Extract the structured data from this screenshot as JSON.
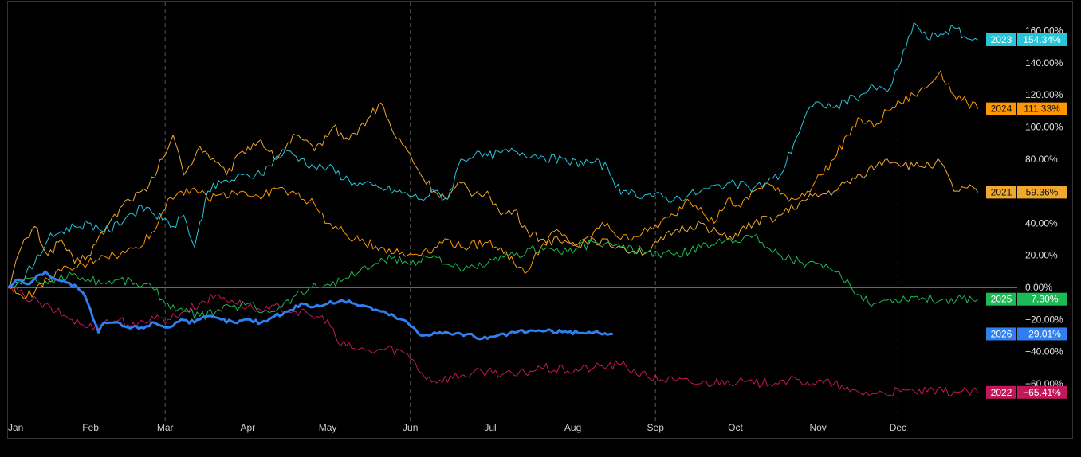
{
  "chart_data": {
    "type": "line",
    "x_ticks": [
      "Jan",
      "Feb",
      "Mar",
      "Apr",
      "May",
      "Jun",
      "Jul",
      "Aug",
      "Sep",
      "Oct",
      "Nov",
      "Dec"
    ],
    "y_ticks": [
      "160.00%",
      "140.00%",
      "120.00%",
      "100.00%",
      "80.00%",
      "60.00%",
      "40.00%",
      "20.00%",
      "0.00%",
      "−20.00%",
      "−40.00%",
      "−60.00%"
    ],
    "ylim": [
      -85,
      170
    ],
    "zero_line": true,
    "vertical_grid_quarters": [
      "Mar",
      "Jun",
      "Sep",
      "Dec"
    ],
    "series": [
      {
        "name": "2021",
        "color": "#f0a830",
        "width": 1,
        "last_label": "59.36%",
        "points": [
          [
            0,
            0
          ],
          [
            5,
            25
          ],
          [
            10,
            38
          ],
          [
            15,
            20
          ],
          [
            20,
            30
          ],
          [
            25,
            15
          ],
          [
            30,
            20
          ],
          [
            38,
            40
          ],
          [
            45,
            55
          ],
          [
            52,
            60
          ],
          [
            58,
            80
          ],
          [
            62,
            95
          ],
          [
            66,
            70
          ],
          [
            72,
            88
          ],
          [
            78,
            78
          ],
          [
            82,
            70
          ],
          [
            88,
            85
          ],
          [
            95,
            92
          ],
          [
            100,
            80
          ],
          [
            108,
            95
          ],
          [
            115,
            85
          ],
          [
            122,
            100
          ],
          [
            128,
            92
          ],
          [
            135,
            105
          ],
          [
            140,
            115
          ],
          [
            145,
            95
          ],
          [
            150,
            85
          ],
          [
            155,
            70
          ],
          [
            160,
            60
          ],
          [
            165,
            55
          ],
          [
            170,
            65
          ],
          [
            175,
            58
          ],
          [
            180,
            60
          ],
          [
            185,
            45
          ],
          [
            190,
            48
          ],
          [
            195,
            35
          ],
          [
            200,
            30
          ],
          [
            210,
            28
          ],
          [
            220,
            30
          ],
          [
            230,
            25
          ],
          [
            240,
            22
          ],
          [
            250,
            35
          ],
          [
            260,
            40
          ],
          [
            270,
            30
          ],
          [
            280,
            40
          ],
          [
            290,
            45
          ],
          [
            300,
            55
          ],
          [
            310,
            60
          ],
          [
            320,
            70
          ],
          [
            330,
            80
          ],
          [
            340,
            75
          ],
          [
            350,
            78
          ],
          [
            355,
            60
          ],
          [
            360,
            62
          ],
          [
            364,
            59.36
          ]
        ]
      },
      {
        "name": "2022",
        "color": "#c2185b",
        "width": 1,
        "last_label": "−65.41%",
        "points": [
          [
            0,
            0
          ],
          [
            6,
            -5
          ],
          [
            12,
            -10
          ],
          [
            18,
            -15
          ],
          [
            24,
            -20
          ],
          [
            30,
            -25
          ],
          [
            36,
            -22
          ],
          [
            42,
            -20
          ],
          [
            48,
            -25
          ],
          [
            54,
            -18
          ],
          [
            60,
            -20
          ],
          [
            66,
            -15
          ],
          [
            72,
            -10
          ],
          [
            78,
            -5
          ],
          [
            84,
            -8
          ],
          [
            90,
            -12
          ],
          [
            96,
            -15
          ],
          [
            102,
            -12
          ],
          [
            108,
            -15
          ],
          [
            114,
            -18
          ],
          [
            120,
            -20
          ],
          [
            124,
            -35
          ],
          [
            130,
            -38
          ],
          [
            136,
            -40
          ],
          [
            142,
            -38
          ],
          [
            148,
            -40
          ],
          [
            152,
            -45
          ],
          [
            156,
            -55
          ],
          [
            160,
            -58
          ],
          [
            170,
            -55
          ],
          [
            180,
            -52
          ],
          [
            190,
            -55
          ],
          [
            200,
            -50
          ],
          [
            210,
            -52
          ],
          [
            220,
            -50
          ],
          [
            230,
            -48
          ],
          [
            240,
            -56
          ],
          [
            250,
            -58
          ],
          [
            260,
            -60
          ],
          [
            270,
            -58
          ],
          [
            280,
            -60
          ],
          [
            290,
            -58
          ],
          [
            300,
            -59
          ],
          [
            310,
            -60
          ],
          [
            316,
            -65
          ],
          [
            325,
            -66
          ],
          [
            335,
            -65
          ],
          [
            345,
            -65
          ],
          [
            355,
            -65
          ],
          [
            364,
            -65.41
          ]
        ]
      },
      {
        "name": "2023",
        "color": "#26c6da",
        "width": 1,
        "last_label": "154.34%",
        "points": [
          [
            0,
            0
          ],
          [
            5,
            5
          ],
          [
            10,
            15
          ],
          [
            15,
            30
          ],
          [
            20,
            35
          ],
          [
            25,
            38
          ],
          [
            30,
            40
          ],
          [
            38,
            35
          ],
          [
            45,
            45
          ],
          [
            52,
            50
          ],
          [
            58,
            42
          ],
          [
            62,
            38
          ],
          [
            66,
            45
          ],
          [
            70,
            25
          ],
          [
            75,
            60
          ],
          [
            80,
            65
          ],
          [
            90,
            70
          ],
          [
            95,
            70
          ],
          [
            100,
            80
          ],
          [
            105,
            85
          ],
          [
            110,
            80
          ],
          [
            115,
            75
          ],
          [
            120,
            75
          ],
          [
            130,
            65
          ],
          [
            140,
            62
          ],
          [
            150,
            58
          ],
          [
            155,
            55
          ],
          [
            160,
            60
          ],
          [
            165,
            55
          ],
          [
            170,
            80
          ],
          [
            175,
            82
          ],
          [
            180,
            82
          ],
          [
            190,
            85
          ],
          [
            200,
            82
          ],
          [
            210,
            78
          ],
          [
            220,
            78
          ],
          [
            225,
            75
          ],
          [
            230,
            58
          ],
          [
            240,
            58
          ],
          [
            250,
            55
          ],
          [
            260,
            60
          ],
          [
            270,
            65
          ],
          [
            280,
            62
          ],
          [
            290,
            70
          ],
          [
            295,
            90
          ],
          [
            300,
            110
          ],
          [
            305,
            115
          ],
          [
            310,
            112
          ],
          [
            320,
            120
          ],
          [
            325,
            125
          ],
          [
            330,
            122
          ],
          [
            335,
            140
          ],
          [
            340,
            165
          ],
          [
            345,
            155
          ],
          [
            350,
            158
          ],
          [
            355,
            162
          ],
          [
            360,
            155
          ],
          [
            364,
            154.34
          ]
        ]
      },
      {
        "name": "2024",
        "color": "#ff9800",
        "width": 1,
        "last_label": "111.33%",
        "points": [
          [
            0,
            0
          ],
          [
            5,
            -5
          ],
          [
            10,
            -3
          ],
          [
            15,
            5
          ],
          [
            20,
            10
          ],
          [
            25,
            12
          ],
          [
            30,
            15
          ],
          [
            35,
            20
          ],
          [
            42,
            20
          ],
          [
            48,
            25
          ],
          [
            55,
            35
          ],
          [
            60,
            55
          ],
          [
            65,
            60
          ],
          [
            70,
            62
          ],
          [
            75,
            55
          ],
          [
            80,
            58
          ],
          [
            88,
            60
          ],
          [
            95,
            55
          ],
          [
            100,
            62
          ],
          [
            108,
            58
          ],
          [
            115,
            52
          ],
          [
            120,
            40
          ],
          [
            130,
            30
          ],
          [
            140,
            25
          ],
          [
            150,
            20
          ],
          [
            160,
            25
          ],
          [
            165,
            30
          ],
          [
            170,
            25
          ],
          [
            180,
            28
          ],
          [
            185,
            25
          ],
          [
            190,
            15
          ],
          [
            195,
            10
          ],
          [
            200,
            25
          ],
          [
            205,
            35
          ],
          [
            210,
            30
          ],
          [
            215,
            25
          ],
          [
            220,
            35
          ],
          [
            225,
            40
          ],
          [
            230,
            30
          ],
          [
            240,
            35
          ],
          [
            250,
            45
          ],
          [
            255,
            55
          ],
          [
            260,
            50
          ],
          [
            265,
            40
          ],
          [
            270,
            55
          ],
          [
            275,
            50
          ],
          [
            280,
            60
          ],
          [
            285,
            65
          ],
          [
            290,
            58
          ],
          [
            295,
            55
          ],
          [
            300,
            60
          ],
          [
            305,
            70
          ],
          [
            310,
            80
          ],
          [
            315,
            95
          ],
          [
            320,
            105
          ],
          [
            325,
            100
          ],
          [
            330,
            110
          ],
          [
            335,
            115
          ],
          [
            340,
            120
          ],
          [
            345,
            125
          ],
          [
            350,
            135
          ],
          [
            355,
            120
          ],
          [
            360,
            115
          ],
          [
            364,
            111.33
          ]
        ]
      },
      {
        "name": "2025",
        "color": "#1db954",
        "width": 1,
        "last_label": "−7.30%",
        "points": [
          [
            0,
            0
          ],
          [
            6,
            5
          ],
          [
            12,
            3
          ],
          [
            18,
            5
          ],
          [
            24,
            8
          ],
          [
            30,
            5
          ],
          [
            36,
            3
          ],
          [
            42,
            5
          ],
          [
            48,
            3
          ],
          [
            54,
            0
          ],
          [
            60,
            -10
          ],
          [
            66,
            -15
          ],
          [
            72,
            -18
          ],
          [
            78,
            -15
          ],
          [
            84,
            -12
          ],
          [
            90,
            -10
          ],
          [
            96,
            -15
          ],
          [
            102,
            -12
          ],
          [
            108,
            -5
          ],
          [
            114,
            0
          ],
          [
            120,
            2
          ],
          [
            126,
            5
          ],
          [
            132,
            10
          ],
          [
            138,
            15
          ],
          [
            144,
            18
          ],
          [
            150,
            15
          ],
          [
            160,
            20
          ],
          [
            170,
            10
          ],
          [
            180,
            15
          ],
          [
            190,
            20
          ],
          [
            200,
            25
          ],
          [
            210,
            22
          ],
          [
            220,
            28
          ],
          [
            230,
            25
          ],
          [
            240,
            22
          ],
          [
            250,
            20
          ],
          [
            260,
            25
          ],
          [
            270,
            30
          ],
          [
            280,
            32
          ],
          [
            285,
            25
          ],
          [
            290,
            20
          ],
          [
            300,
            15
          ],
          [
            310,
            10
          ],
          [
            320,
            -5
          ],
          [
            325,
            -10
          ],
          [
            330,
            -8
          ],
          [
            340,
            -6
          ],
          [
            350,
            -8
          ],
          [
            358,
            -7
          ],
          [
            364,
            -7.3
          ]
        ]
      },
      {
        "name": "2026",
        "color": "#2f7ff0",
        "width": 3,
        "last_label": "−29.01%",
        "points": [
          [
            0,
            0
          ],
          [
            4,
            5
          ],
          [
            8,
            2
          ],
          [
            12,
            8
          ],
          [
            14,
            10
          ],
          [
            18,
            5
          ],
          [
            22,
            3
          ],
          [
            26,
            0
          ],
          [
            28,
            -3
          ],
          [
            30,
            -10
          ],
          [
            32,
            -20
          ],
          [
            34,
            -28
          ],
          [
            36,
            -22
          ],
          [
            40,
            -22
          ],
          [
            45,
            -25
          ],
          [
            50,
            -25
          ],
          [
            55,
            -22
          ],
          [
            60,
            -25
          ],
          [
            65,
            -20
          ],
          [
            70,
            -22
          ],
          [
            75,
            -18
          ],
          [
            80,
            -20
          ],
          [
            85,
            -22
          ],
          [
            90,
            -20
          ],
          [
            95,
            -22
          ],
          [
            100,
            -18
          ],
          [
            105,
            -15
          ],
          [
            110,
            -10
          ],
          [
            115,
            -12
          ],
          [
            120,
            -10
          ],
          [
            125,
            -8
          ],
          [
            130,
            -10
          ],
          [
            135,
            -12
          ],
          [
            140,
            -15
          ],
          [
            145,
            -18
          ],
          [
            150,
            -22
          ],
          [
            155,
            -30
          ],
          [
            160,
            -28
          ],
          [
            170,
            -29
          ],
          [
            180,
            -32
          ],
          [
            190,
            -28
          ],
          [
            200,
            -27
          ],
          [
            210,
            -28
          ],
          [
            220,
            -28
          ],
          [
            227,
            -29.01
          ]
        ]
      }
    ]
  }
}
